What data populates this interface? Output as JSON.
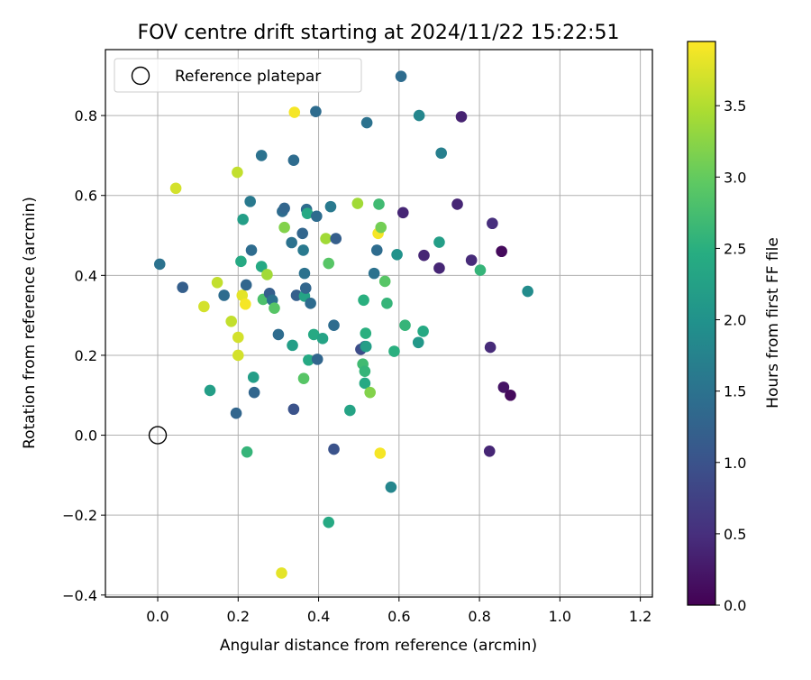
{
  "chart_data": {
    "type": "scatter",
    "title": "FOV centre drift starting at 2024/11/22 15:22:51",
    "xlabel": "Angular distance from reference (arcmin)",
    "ylabel": "Rotation from reference (arcmin)",
    "xlim": [
      -0.13,
      1.23
    ],
    "ylim": [
      -0.405,
      0.965
    ],
    "xticks": [
      0.0,
      0.2,
      0.4,
      0.6,
      0.8,
      1.0,
      1.2
    ],
    "xtick_labels": [
      "0.0",
      "0.2",
      "0.4",
      "0.6",
      "0.8",
      "1.0",
      "1.2"
    ],
    "yticks": [
      -0.4,
      -0.2,
      0.0,
      0.2,
      0.4,
      0.6,
      0.8
    ],
    "ytick_labels": [
      "−0.4",
      "−0.2",
      "0.0",
      "0.2",
      "0.4",
      "0.6",
      "0.8"
    ],
    "grid": true,
    "colormap": "viridis",
    "colorbar": {
      "label": "Hours from first FF file",
      "range": [
        0.0,
        3.95
      ],
      "ticks": [
        0.0,
        0.5,
        1.0,
        1.5,
        2.0,
        2.5,
        3.0,
        3.5
      ],
      "tick_labels": [
        "0.0",
        "0.5",
        "1.0",
        "1.5",
        "2.0",
        "2.5",
        "3.0",
        "3.5"
      ]
    },
    "legend": {
      "position": "upper-left",
      "entries": [
        {
          "label": "Reference platepar",
          "marker": "open-circle"
        }
      ]
    },
    "reference_point": {
      "x": 0.0,
      "y": 0.0
    },
    "points": [
      {
        "x": 0.005,
        "y": 0.428,
        "c": 1.5
      },
      {
        "x": 0.045,
        "y": 0.618,
        "c": 3.7
      },
      {
        "x": 0.062,
        "y": 0.37,
        "c": 1.2
      },
      {
        "x": 0.115,
        "y": 0.322,
        "c": 3.7
      },
      {
        "x": 0.13,
        "y": 0.112,
        "c": 2.2
      },
      {
        "x": 0.148,
        "y": 0.382,
        "c": 3.6
      },
      {
        "x": 0.165,
        "y": 0.35,
        "c": 1.4
      },
      {
        "x": 0.183,
        "y": 0.285,
        "c": 3.6
      },
      {
        "x": 0.195,
        "y": 0.055,
        "c": 1.3
      },
      {
        "x": 0.198,
        "y": 0.658,
        "c": 3.6
      },
      {
        "x": 0.2,
        "y": 0.2,
        "c": 3.7
      },
      {
        "x": 0.2,
        "y": 0.245,
        "c": 3.7
      },
      {
        "x": 0.207,
        "y": 0.435,
        "c": 2.4
      },
      {
        "x": 0.21,
        "y": 0.35,
        "c": 3.8
      },
      {
        "x": 0.212,
        "y": 0.54,
        "c": 2.2
      },
      {
        "x": 0.218,
        "y": 0.328,
        "c": 3.9
      },
      {
        "x": 0.22,
        "y": 0.376,
        "c": 1.3
      },
      {
        "x": 0.222,
        "y": -0.042,
        "c": 2.6
      },
      {
        "x": 0.23,
        "y": 0.585,
        "c": 1.6
      },
      {
        "x": 0.233,
        "y": 0.463,
        "c": 1.4
      },
      {
        "x": 0.238,
        "y": 0.145,
        "c": 2.2
      },
      {
        "x": 0.24,
        "y": 0.107,
        "c": 1.3
      },
      {
        "x": 0.258,
        "y": 0.7,
        "c": 1.5
      },
      {
        "x": 0.258,
        "y": 0.422,
        "c": 2.4
      },
      {
        "x": 0.262,
        "y": 0.34,
        "c": 2.8
      },
      {
        "x": 0.272,
        "y": 0.402,
        "c": 3.4
      },
      {
        "x": 0.278,
        "y": 0.355,
        "c": 1.2
      },
      {
        "x": 0.285,
        "y": 0.338,
        "c": 1.5
      },
      {
        "x": 0.29,
        "y": 0.318,
        "c": 2.9
      },
      {
        "x": 0.3,
        "y": 0.252,
        "c": 1.4
      },
      {
        "x": 0.308,
        "y": -0.345,
        "c": 3.8
      },
      {
        "x": 0.31,
        "y": 0.56,
        "c": 1.4
      },
      {
        "x": 0.315,
        "y": 0.568,
        "c": 1.3
      },
      {
        "x": 0.315,
        "y": 0.52,
        "c": 3.2
      },
      {
        "x": 0.333,
        "y": 0.482,
        "c": 1.5
      },
      {
        "x": 0.335,
        "y": 0.225,
        "c": 2.2
      },
      {
        "x": 0.338,
        "y": 0.065,
        "c": 1.0
      },
      {
        "x": 0.338,
        "y": 0.688,
        "c": 1.4
      },
      {
        "x": 0.34,
        "y": 0.808,
        "c": 3.9
      },
      {
        "x": 0.345,
        "y": 0.35,
        "c": 1.2
      },
      {
        "x": 0.36,
        "y": 0.505,
        "c": 1.3
      },
      {
        "x": 0.362,
        "y": 0.463,
        "c": 1.6
      },
      {
        "x": 0.363,
        "y": 0.142,
        "c": 2.9
      },
      {
        "x": 0.365,
        "y": 0.348,
        "c": 2.3
      },
      {
        "x": 0.365,
        "y": 0.405,
        "c": 1.5
      },
      {
        "x": 0.368,
        "y": 0.368,
        "c": 1.3
      },
      {
        "x": 0.37,
        "y": 0.565,
        "c": 1.4
      },
      {
        "x": 0.372,
        "y": 0.555,
        "c": 2.4
      },
      {
        "x": 0.375,
        "y": 0.188,
        "c": 2.4
      },
      {
        "x": 0.38,
        "y": 0.33,
        "c": 1.4
      },
      {
        "x": 0.388,
        "y": 0.252,
        "c": 2.4
      },
      {
        "x": 0.393,
        "y": 0.81,
        "c": 1.4
      },
      {
        "x": 0.395,
        "y": 0.548,
        "c": 1.4
      },
      {
        "x": 0.397,
        "y": 0.19,
        "c": 1.3
      },
      {
        "x": 0.41,
        "y": 0.242,
        "c": 2.3
      },
      {
        "x": 0.418,
        "y": 0.492,
        "c": 3.4
      },
      {
        "x": 0.425,
        "y": 0.43,
        "c": 2.9
      },
      {
        "x": 0.425,
        "y": -0.218,
        "c": 2.4
      },
      {
        "x": 0.43,
        "y": 0.572,
        "c": 1.6
      },
      {
        "x": 0.438,
        "y": -0.035,
        "c": 1.0
      },
      {
        "x": 0.438,
        "y": 0.275,
        "c": 1.4
      },
      {
        "x": 0.443,
        "y": 0.492,
        "c": 1.2
      },
      {
        "x": 0.478,
        "y": 0.062,
        "c": 2.3
      },
      {
        "x": 0.497,
        "y": 0.58,
        "c": 3.4
      },
      {
        "x": 0.505,
        "y": 0.215,
        "c": 0.9
      },
      {
        "x": 0.51,
        "y": 0.178,
        "c": 2.7
      },
      {
        "x": 0.512,
        "y": 0.338,
        "c": 2.5
      },
      {
        "x": 0.515,
        "y": 0.16,
        "c": 2.6
      },
      {
        "x": 0.515,
        "y": 0.13,
        "c": 2.4
      },
      {
        "x": 0.515,
        "y": 0.222,
        "c": 1.2
      },
      {
        "x": 0.517,
        "y": 0.255,
        "c": 2.5
      },
      {
        "x": 0.518,
        "y": 0.222,
        "c": 2.2
      },
      {
        "x": 0.52,
        "y": 0.782,
        "c": 1.5
      },
      {
        "x": 0.528,
        "y": 0.107,
        "c": 3.2
      },
      {
        "x": 0.538,
        "y": 0.405,
        "c": 1.5
      },
      {
        "x": 0.545,
        "y": 0.463,
        "c": 1.4
      },
      {
        "x": 0.548,
        "y": 0.505,
        "c": 3.9
      },
      {
        "x": 0.55,
        "y": 0.578,
        "c": 2.7
      },
      {
        "x": 0.553,
        "y": -0.045,
        "c": 3.9
      },
      {
        "x": 0.555,
        "y": 0.52,
        "c": 3.1
      },
      {
        "x": 0.565,
        "y": 0.385,
        "c": 2.9
      },
      {
        "x": 0.57,
        "y": 0.33,
        "c": 2.6
      },
      {
        "x": 0.58,
        "y": -0.13,
        "c": 1.8
      },
      {
        "x": 0.588,
        "y": 0.21,
        "c": 2.5
      },
      {
        "x": 0.595,
        "y": 0.452,
        "c": 2.0
      },
      {
        "x": 0.605,
        "y": 0.898,
        "c": 1.4
      },
      {
        "x": 0.61,
        "y": 0.557,
        "c": 0.4
      },
      {
        "x": 0.615,
        "y": 0.275,
        "c": 2.6
      },
      {
        "x": 0.648,
        "y": 0.232,
        "c": 2.1
      },
      {
        "x": 0.65,
        "y": 0.8,
        "c": 1.8
      },
      {
        "x": 0.66,
        "y": 0.26,
        "c": 2.4
      },
      {
        "x": 0.662,
        "y": 0.45,
        "c": 0.4
      },
      {
        "x": 0.7,
        "y": 0.483,
        "c": 2.2
      },
      {
        "x": 0.7,
        "y": 0.418,
        "c": 0.4
      },
      {
        "x": 0.705,
        "y": 0.706,
        "c": 1.7
      },
      {
        "x": 0.745,
        "y": 0.578,
        "c": 0.4
      },
      {
        "x": 0.755,
        "y": 0.797,
        "c": 0.35
      },
      {
        "x": 0.78,
        "y": 0.438,
        "c": 0.45
      },
      {
        "x": 0.802,
        "y": 0.413,
        "c": 2.6
      },
      {
        "x": 0.825,
        "y": -0.04,
        "c": 0.4
      },
      {
        "x": 0.827,
        "y": 0.22,
        "c": 0.45
      },
      {
        "x": 0.832,
        "y": 0.53,
        "c": 0.5
      },
      {
        "x": 0.855,
        "y": 0.46,
        "c": 0.1
      },
      {
        "x": 0.86,
        "y": 0.12,
        "c": 0.2
      },
      {
        "x": 0.877,
        "y": 0.1,
        "c": 0.1
      },
      {
        "x": 0.92,
        "y": 0.36,
        "c": 1.9
      }
    ]
  }
}
